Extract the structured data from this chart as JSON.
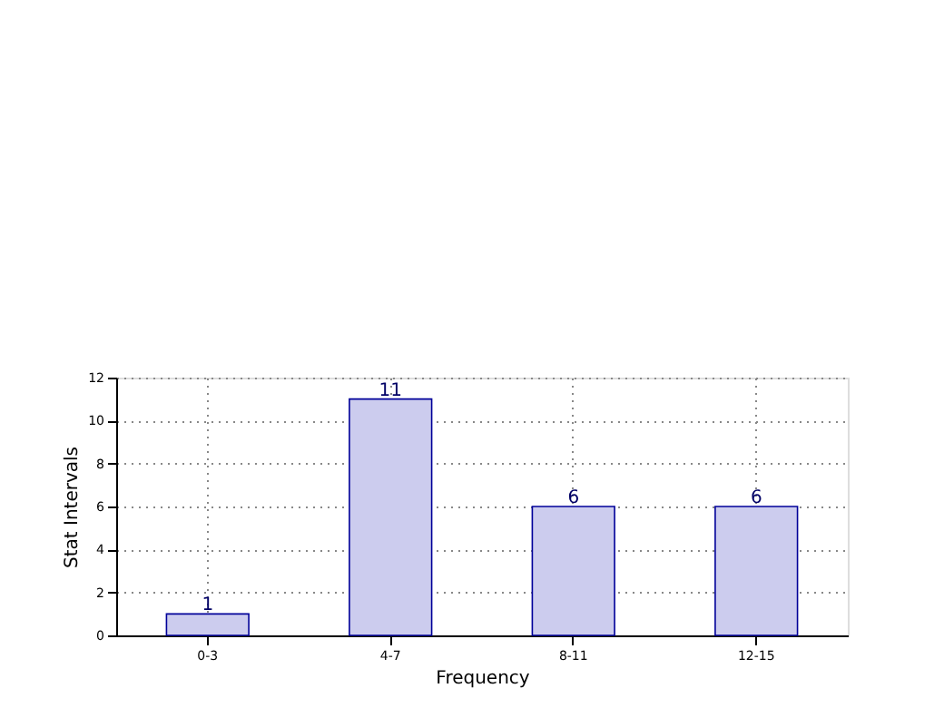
{
  "chart_data": {
    "type": "bar",
    "xlabel": "Frequency",
    "ylabel": "Stat Intervals",
    "categories": [
      "0-3",
      "4-7",
      "8-11",
      "12-15"
    ],
    "values": [
      1,
      11,
      6,
      6
    ],
    "color": "#ccccee",
    "ylim": [
      0,
      12
    ],
    "yticks": [
      0,
      2,
      4,
      6,
      8,
      10,
      12
    ],
    "grid": true,
    "data_labels": true
  }
}
